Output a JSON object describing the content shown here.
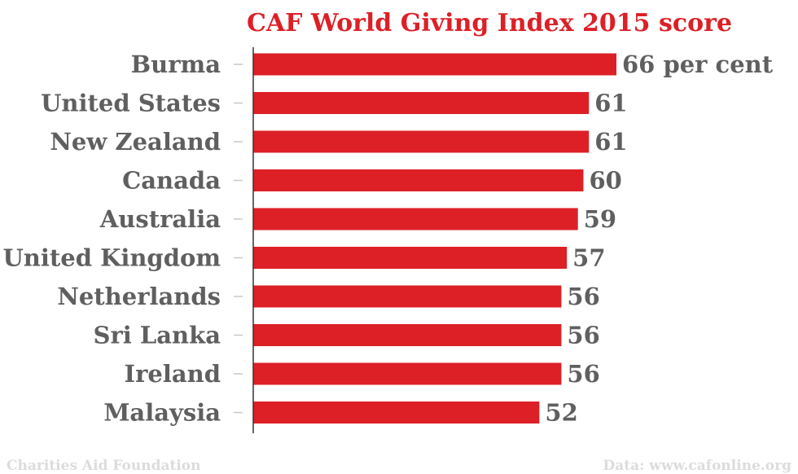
{
  "chart_data": {
    "type": "bar",
    "orientation": "horizontal",
    "title": "CAF World Giving Index 2015 score",
    "categories": [
      "Burma",
      "United States",
      "New Zealand",
      "Canada",
      "Australia",
      "United Kingdom",
      "Netherlands",
      "Sri Lanka",
      "Ireland",
      "Malaysia"
    ],
    "values": [
      66,
      61,
      61,
      60,
      59,
      57,
      56,
      56,
      56,
      52
    ],
    "value_labels": [
      "66 per cent",
      "61",
      "61",
      "60",
      "59",
      "57",
      "56",
      "56",
      "56",
      "52"
    ],
    "xlim": [
      0,
      66
    ],
    "grid": false,
    "legend": "none"
  },
  "footer": {
    "left": "Charities Aid Foundation",
    "right": "Data: www.cafonline.org"
  },
  "colors": {
    "bar": "#dd1f26",
    "title": "#dd1f26",
    "text": "#5f5f5f",
    "footer": "#dcdcdc",
    "axis": "#333333",
    "tick": "#c8c8c8"
  }
}
